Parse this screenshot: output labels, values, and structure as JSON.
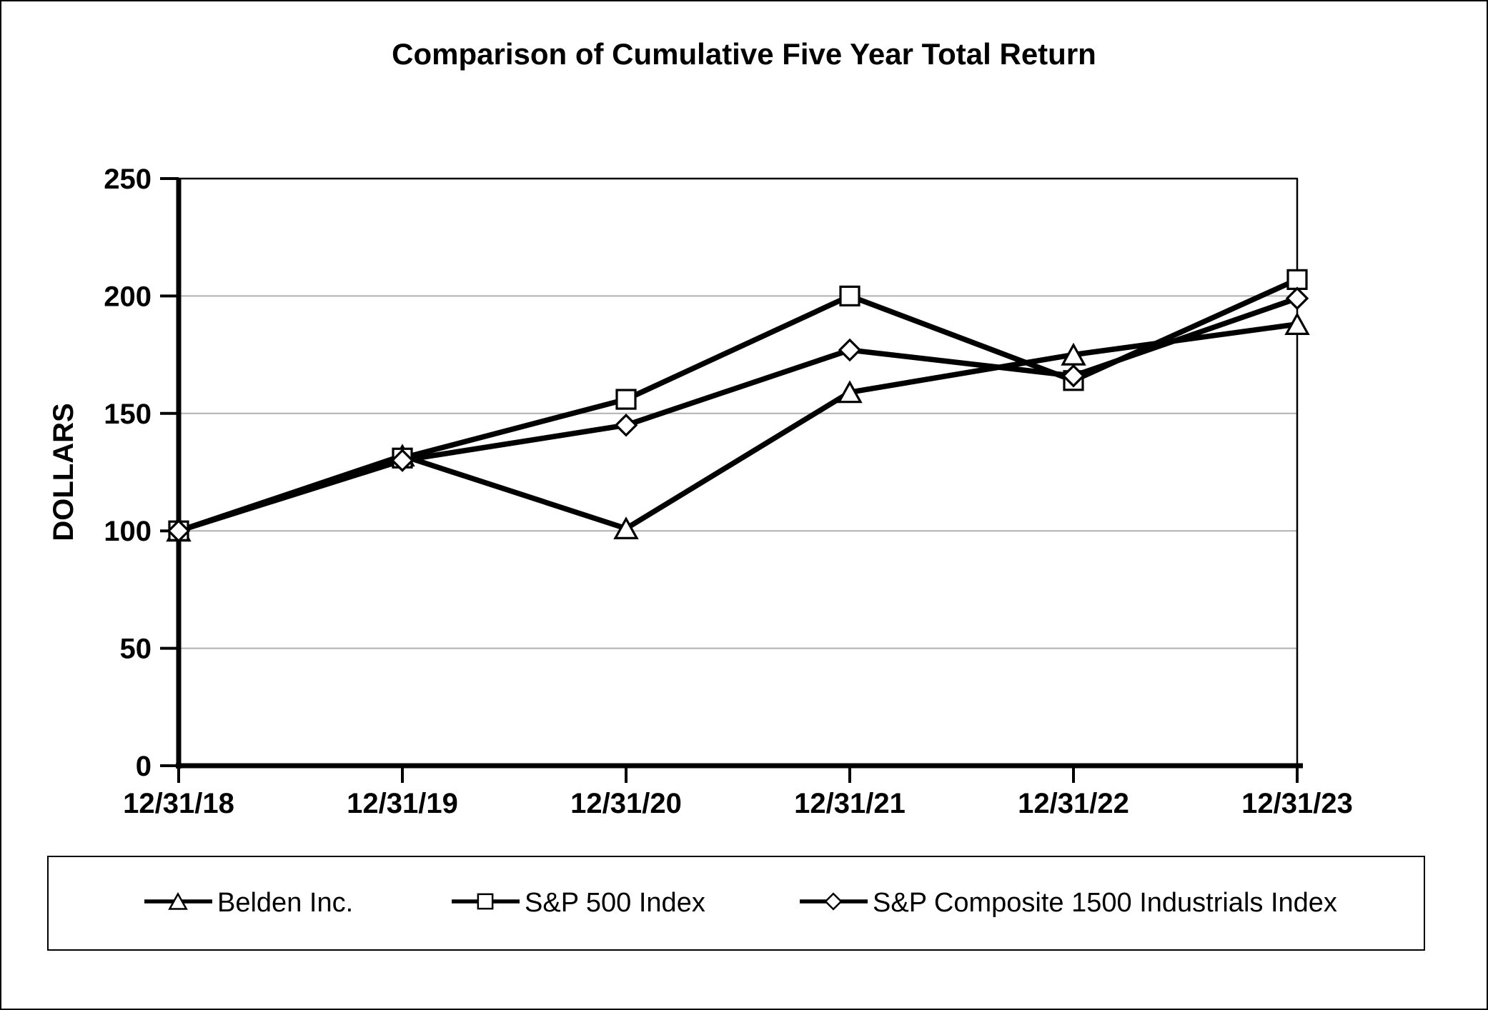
{
  "page": {
    "title": "Comparison of Cumulative Five Year Total Return"
  },
  "chart_data": {
    "type": "line",
    "title": "Comparison of Cumulative Five Year Total Return",
    "xlabel": "",
    "ylabel": "DOLLARS",
    "ylim": [
      0,
      250
    ],
    "yticks": [
      0,
      50,
      100,
      150,
      200,
      250
    ],
    "categories": [
      "12/31/18",
      "12/31/19",
      "12/31/20",
      "12/31/21",
      "12/31/22",
      "12/31/23"
    ],
    "series": [
      {
        "name": "Belden Inc.",
        "marker": "triangle",
        "values": [
          100,
          132,
          101,
          159,
          175,
          188
        ]
      },
      {
        "name": "S&P 500 Index",
        "marker": "square",
        "values": [
          100,
          131,
          156,
          200,
          164,
          207
        ]
      },
      {
        "name": "S&P Composite 1500 Industrials Index",
        "marker": "diamond",
        "values": [
          100,
          130,
          145,
          177,
          166,
          199
        ]
      }
    ],
    "legend_position": "bottom",
    "grid": "horizontal",
    "line_color": "#000000",
    "gridline_color": "#b0b0b0",
    "axis_color": "#000000",
    "marker_fill": "#ffffff"
  }
}
